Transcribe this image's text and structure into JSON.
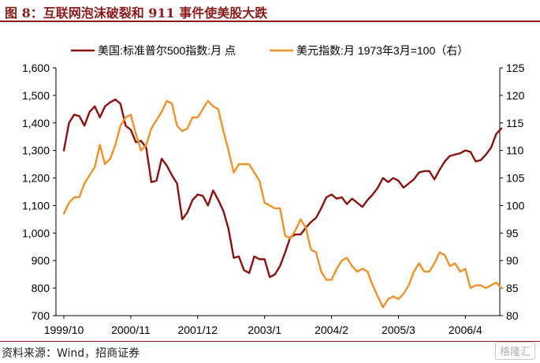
{
  "title": "图 8：互联网泡沫破裂和 911 事件使美股大跌",
  "source": "资料来源：Wind，招商证券",
  "watermark": "格隆汇",
  "chart_data": {
    "type": "line",
    "series": [
      {
        "name": "美国:标准普尔500指数:月 点",
        "axis": "left",
        "color": "#8b1010",
        "values": [
          1300,
          1400,
          1430,
          1425,
          1390,
          1440,
          1460,
          1420,
          1460,
          1475,
          1485,
          1470,
          1390,
          1375,
          1330,
          1335,
          1310,
          1185,
          1190,
          1270,
          1245,
          1210,
          1180,
          1050,
          1075,
          1120,
          1140,
          1135,
          1100,
          1155,
          1120,
          1080,
          1015,
          910,
          915,
          865,
          855,
          915,
          905,
          905,
          840,
          850,
          880,
          930,
          985,
          995,
          995,
          1020,
          1040,
          1055,
          1090,
          1130,
          1140,
          1125,
          1130,
          1105,
          1125,
          1110,
          1095,
          1120,
          1140,
          1165,
          1200,
          1185,
          1200,
          1190,
          1165,
          1180,
          1195,
          1220,
          1225,
          1225,
          1195,
          1230,
          1260,
          1280,
          1285,
          1290,
          1300,
          1295,
          1260,
          1265,
          1285,
          1310,
          1360,
          1380
        ]
      },
      {
        "name": "美元指数:月 1973年3月=100（右）",
        "axis": "right",
        "color": "#f0902a",
        "values": [
          98.5,
          100.5,
          101.5,
          101.5,
          104.0,
          105.5,
          107.0,
          111.0,
          107.5,
          108.5,
          111.0,
          114.5,
          116.0,
          116.5,
          113.0,
          110.0,
          111.0,
          114.0,
          115.5,
          117.0,
          119.0,
          118.5,
          114.5,
          113.5,
          114.0,
          116.0,
          116.0,
          117.5,
          119.0,
          118.0,
          117.5,
          113.5,
          110.0,
          106.0,
          107.5,
          107.5,
          107.5,
          106.0,
          104.5,
          100.5,
          100.0,
          99.5,
          99.5,
          94.5,
          94.0,
          95.5,
          97.5,
          96.0,
          92.0,
          91.5,
          88.0,
          86.5,
          86.5,
          88.5,
          90.0,
          90.5,
          89.0,
          88.0,
          88.5,
          88.0,
          85.5,
          83.5,
          81.5,
          83.0,
          83.5,
          83.0,
          84.0,
          85.5,
          88.0,
          89.5,
          88.0,
          88.0,
          89.5,
          91.5,
          91.0,
          89.0,
          89.5,
          88.0,
          88.5,
          85.0,
          85.5,
          85.5,
          85.0,
          85.5,
          86.0,
          85.0
        ]
      }
    ],
    "x_tick_labels": [
      "1999/10",
      "2000/11",
      "2001/12",
      "2003/1",
      "2004/2",
      "2005/3",
      "2006/4"
    ],
    "y_left": {
      "min": 700,
      "max": 1600,
      "step": 100,
      "ticks": [
        "700",
        "800",
        "900",
        "1,000",
        "1,100",
        "1,200",
        "1,300",
        "1,400",
        "1,500",
        "1,600"
      ]
    },
    "y_right": {
      "min": 80,
      "max": 125,
      "step": 5,
      "ticks": [
        "80",
        "85",
        "90",
        "95",
        "100",
        "105",
        "110",
        "115",
        "120",
        "125"
      ]
    },
    "grid": false,
    "legend": "top"
  }
}
